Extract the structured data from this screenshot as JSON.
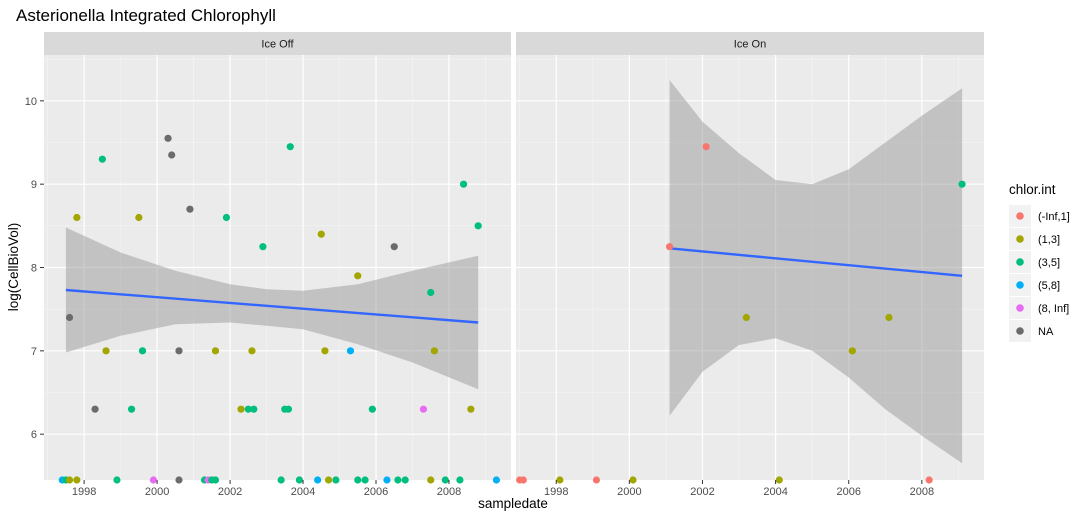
{
  "chart_data": {
    "type": "scatter",
    "title": "Asterionella Integrated Chlorophyll",
    "xlabel": "sampledate",
    "ylabel": "log(CellBioVol)",
    "xlim": [
      1996.9,
      2009.7
    ],
    "ylim": [
      5.45,
      10.55
    ],
    "x_ticks": [
      "1998",
      "2000",
      "2002",
      "2004",
      "2006",
      "2008"
    ],
    "y_ticks": [
      "6",
      "7",
      "8",
      "9",
      "10"
    ],
    "grid": true,
    "legend": {
      "title": "chlor.int",
      "position": "right",
      "entries": [
        {
          "label": "(-Inf,1]",
          "color": "#F8766D"
        },
        {
          "label": "(1,3]",
          "color": "#A3A500"
        },
        {
          "label": "(3,5]",
          "color": "#00BF7D"
        },
        {
          "label": "(5,8]",
          "color": "#00B0F6"
        },
        {
          "label": "(8, Inf]",
          "color": "#E76BF3"
        },
        {
          "label": "NA",
          "color": "#6B6B6B"
        }
      ]
    },
    "facets": [
      {
        "label": "Ice Off",
        "points": [
          {
            "x": 1997.6,
            "y": 7.4,
            "group": "NA"
          },
          {
            "x": 1997.8,
            "y": 8.6,
            "group": "(1,3]"
          },
          {
            "x": 1998.5,
            "y": 9.3,
            "group": "(3,5]"
          },
          {
            "x": 1998.6,
            "y": 7.0,
            "group": "(1,3]"
          },
          {
            "x": 1998.3,
            "y": 6.3,
            "group": "NA"
          },
          {
            "x": 1999.3,
            "y": 6.3,
            "group": "(3,5]"
          },
          {
            "x": 1999.5,
            "y": 8.6,
            "group": "(1,3]"
          },
          {
            "x": 1999.6,
            "y": 7.0,
            "group": "(3,5]"
          },
          {
            "x": 2000.3,
            "y": 9.55,
            "group": "NA"
          },
          {
            "x": 2000.4,
            "y": 9.35,
            "group": "NA"
          },
          {
            "x": 2000.9,
            "y": 8.7,
            "group": "NA"
          },
          {
            "x": 2000.6,
            "y": 7.0,
            "group": "NA"
          },
          {
            "x": 2001.6,
            "y": 7.0,
            "group": "(1,3]"
          },
          {
            "x": 2001.9,
            "y": 8.6,
            "group": "(3,5]"
          },
          {
            "x": 2002.3,
            "y": 6.3,
            "group": "(1,3]"
          },
          {
            "x": 2002.5,
            "y": 6.3,
            "group": "(3,5]"
          },
          {
            "x": 2002.6,
            "y": 7.0,
            "group": "(1,3]"
          },
          {
            "x": 2002.65,
            "y": 6.3,
            "group": "(3,5]"
          },
          {
            "x": 2002.9,
            "y": 8.25,
            "group": "(3,5]"
          },
          {
            "x": 2003.5,
            "y": 6.3,
            "group": "(3,5]"
          },
          {
            "x": 2003.6,
            "y": 6.3,
            "group": "(3,5]"
          },
          {
            "x": 2003.65,
            "y": 9.45,
            "group": "(3,5]"
          },
          {
            "x": 2004.5,
            "y": 8.4,
            "group": "(1,3]"
          },
          {
            "x": 2004.6,
            "y": 7.0,
            "group": "(1,3]"
          },
          {
            "x": 2005.3,
            "y": 7.0,
            "group": "(5,8]"
          },
          {
            "x": 2005.5,
            "y": 7.9,
            "group": "(1,3]"
          },
          {
            "x": 2005.9,
            "y": 6.3,
            "group": "(3,5]"
          },
          {
            "x": 2006.5,
            "y": 8.25,
            "group": "NA"
          },
          {
            "x": 2007.3,
            "y": 6.3,
            "group": "(8, Inf]"
          },
          {
            "x": 2007.5,
            "y": 7.7,
            "group": "(3,5]"
          },
          {
            "x": 2007.6,
            "y": 7.0,
            "group": "(1,3]"
          },
          {
            "x": 2008.4,
            "y": 9.0,
            "group": "(3,5]"
          },
          {
            "x": 2008.6,
            "y": 6.3,
            "group": "(1,3]"
          },
          {
            "x": 2008.8,
            "y": 8.5,
            "group": "(3,5]"
          },
          {
            "x": 1997.4,
            "y": 5.45,
            "group": "(5,8]"
          },
          {
            "x": 1997.5,
            "y": 5.45,
            "group": "(3,5]"
          },
          {
            "x": 1997.6,
            "y": 5.45,
            "group": "(1,3]"
          },
          {
            "x": 1997.8,
            "y": 5.45,
            "group": "(1,3]"
          },
          {
            "x": 1998.9,
            "y": 5.45,
            "group": "(3,5]"
          },
          {
            "x": 1999.9,
            "y": 5.45,
            "group": "(8, Inf]"
          },
          {
            "x": 2000.6,
            "y": 5.45,
            "group": "NA"
          },
          {
            "x": 2001.3,
            "y": 5.45,
            "group": "(3,5]"
          },
          {
            "x": 2001.4,
            "y": 5.45,
            "group": "(8, Inf]"
          },
          {
            "x": 2001.5,
            "y": 5.45,
            "group": "(3,5]"
          },
          {
            "x": 2001.6,
            "y": 5.45,
            "group": "(3,5]"
          },
          {
            "x": 2003.4,
            "y": 5.45,
            "group": "(3,5]"
          },
          {
            "x": 2003.9,
            "y": 5.45,
            "group": "(3,5]"
          },
          {
            "x": 2004.4,
            "y": 5.45,
            "group": "(5,8]"
          },
          {
            "x": 2004.7,
            "y": 5.45,
            "group": "(1,3]"
          },
          {
            "x": 2004.9,
            "y": 5.45,
            "group": "(3,5]"
          },
          {
            "x": 2005.5,
            "y": 5.45,
            "group": "(3,5]"
          },
          {
            "x": 2005.7,
            "y": 5.45,
            "group": "(3,5]"
          },
          {
            "x": 2006.3,
            "y": 5.45,
            "group": "(5,8]"
          },
          {
            "x": 2006.6,
            "y": 5.45,
            "group": "(3,5]"
          },
          {
            "x": 2006.8,
            "y": 5.45,
            "group": "(3,5]"
          },
          {
            "x": 2007.5,
            "y": 5.45,
            "group": "(1,3]"
          },
          {
            "x": 2007.9,
            "y": 5.45,
            "group": "(3,5]"
          },
          {
            "x": 2008.3,
            "y": 5.45,
            "group": "(3,5]"
          },
          {
            "x": 2009.3,
            "y": 5.45,
            "group": "(5,8]"
          }
        ],
        "fit": {
          "x": [
            1997.5,
            2008.8
          ],
          "y": [
            7.73,
            7.34
          ]
        },
        "ci": [
          {
            "x": 1997.5,
            "lower": 6.98,
            "upper": 8.48
          },
          {
            "x": 1999.0,
            "lower": 7.18,
            "upper": 8.18
          },
          {
            "x": 2000.5,
            "lower": 7.32,
            "upper": 7.96
          },
          {
            "x": 2002.0,
            "lower": 7.34,
            "upper": 7.8
          },
          {
            "x": 2003.0,
            "lower": 7.3,
            "upper": 7.74
          },
          {
            "x": 2004.0,
            "lower": 7.26,
            "upper": 7.72
          },
          {
            "x": 2005.5,
            "lower": 7.08,
            "upper": 7.8
          },
          {
            "x": 2007.0,
            "lower": 6.86,
            "upper": 7.96
          },
          {
            "x": 2008.8,
            "lower": 6.54,
            "upper": 8.14
          }
        ]
      },
      {
        "label": "Ice On",
        "points": [
          {
            "x": 2001.1,
            "y": 8.25,
            "group": "(-Inf,1]"
          },
          {
            "x": 2002.1,
            "y": 9.45,
            "group": "(-Inf,1]"
          },
          {
            "x": 2003.2,
            "y": 7.4,
            "group": "(1,3]"
          },
          {
            "x": 2006.1,
            "y": 7.0,
            "group": "(1,3]"
          },
          {
            "x": 2007.1,
            "y": 7.4,
            "group": "(1,3]"
          },
          {
            "x": 2009.1,
            "y": 9.0,
            "group": "(3,5]"
          },
          {
            "x": 1997.0,
            "y": 5.45,
            "group": "(-Inf,1]"
          },
          {
            "x": 1997.1,
            "y": 5.45,
            "group": "(-Inf,1]"
          },
          {
            "x": 1998.1,
            "y": 5.45,
            "group": "(1,3]"
          },
          {
            "x": 1999.1,
            "y": 5.45,
            "group": "(-Inf,1]"
          },
          {
            "x": 2000.1,
            "y": 5.45,
            "group": "(1,3]"
          },
          {
            "x": 2004.1,
            "y": 5.45,
            "group": "(1,3]"
          },
          {
            "x": 2008.2,
            "y": 5.45,
            "group": "(-Inf,1]"
          }
        ],
        "fit": {
          "x": [
            2001.1,
            2009.1
          ],
          "y": [
            8.23,
            7.9
          ]
        },
        "ci": [
          {
            "x": 2001.1,
            "lower": 6.22,
            "upper": 10.25
          },
          {
            "x": 2002.0,
            "lower": 6.75,
            "upper": 9.75
          },
          {
            "x": 2003.0,
            "lower": 7.07,
            "upper": 9.37
          },
          {
            "x": 2004.0,
            "lower": 7.15,
            "upper": 9.05
          },
          {
            "x": 2005.0,
            "lower": 7.0,
            "upper": 9.0
          },
          {
            "x": 2006.0,
            "lower": 6.68,
            "upper": 9.18
          },
          {
            "x": 2007.0,
            "lower": 6.3,
            "upper": 9.5
          },
          {
            "x": 2008.0,
            "lower": 5.98,
            "upper": 9.82
          },
          {
            "x": 2009.1,
            "lower": 5.65,
            "upper": 10.15
          }
        ]
      }
    ]
  }
}
